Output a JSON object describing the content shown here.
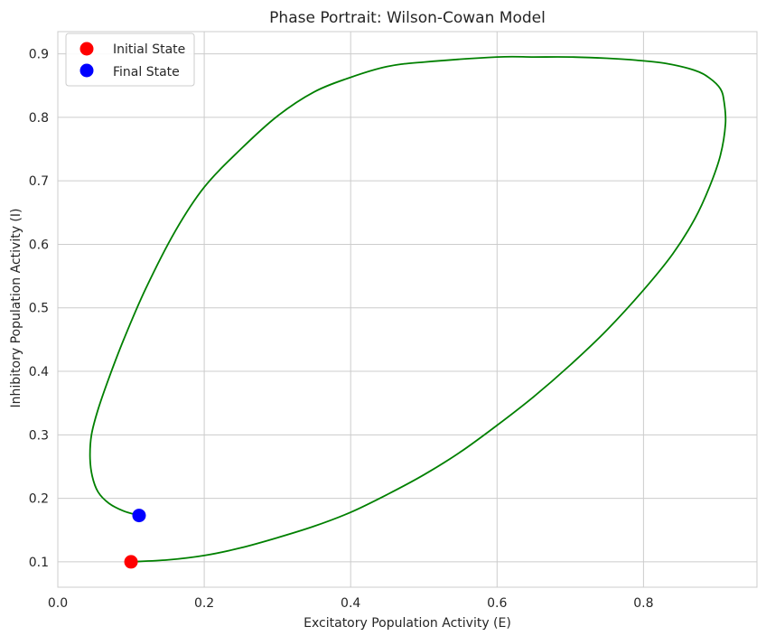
{
  "chart_data": {
    "type": "line",
    "title": "Phase Portrait: Wilson-Cowan Model",
    "xlabel": "Excitatory Population Activity (E)",
    "ylabel": "Inhibitory Population Activity (I)",
    "xlim": [
      0.0,
      0.955
    ],
    "ylim": [
      0.06,
      0.935
    ],
    "xticks": [
      0.0,
      0.2,
      0.4,
      0.6,
      0.8
    ],
    "xtick_labels": [
      "0.0",
      "0.2",
      "0.4",
      "0.6",
      "0.8"
    ],
    "yticks": [
      0.1,
      0.2,
      0.3,
      0.4,
      0.5,
      0.6,
      0.7,
      0.8,
      0.9
    ],
    "ytick_labels": [
      "0.1",
      "0.2",
      "0.3",
      "0.4",
      "0.5",
      "0.6",
      "0.7",
      "0.8",
      "0.9"
    ],
    "grid": true,
    "legend_position": "top-left",
    "trajectory": {
      "color": "#008000",
      "x": [
        0.1,
        0.15,
        0.2,
        0.25,
        0.3,
        0.35,
        0.4,
        0.45,
        0.5,
        0.55,
        0.6,
        0.65,
        0.7,
        0.75,
        0.8,
        0.84,
        0.87,
        0.89,
        0.905,
        0.912,
        0.91,
        0.905,
        0.89,
        0.87,
        0.83,
        0.79,
        0.75,
        0.7,
        0.65,
        0.6,
        0.5,
        0.45,
        0.4,
        0.35,
        0.3,
        0.25,
        0.2,
        0.16,
        0.12,
        0.09,
        0.07,
        0.055,
        0.046,
        0.044,
        0.047,
        0.055,
        0.07,
        0.09,
        0.111
      ],
      "y": [
        0.1,
        0.103,
        0.11,
        0.122,
        0.138,
        0.156,
        0.178,
        0.206,
        0.237,
        0.273,
        0.315,
        0.36,
        0.41,
        0.465,
        0.528,
        0.585,
        0.64,
        0.69,
        0.74,
        0.79,
        0.825,
        0.845,
        0.862,
        0.874,
        0.885,
        0.89,
        0.893,
        0.895,
        0.895,
        0.895,
        0.887,
        0.88,
        0.863,
        0.84,
        0.802,
        0.75,
        0.69,
        0.62,
        0.53,
        0.45,
        0.39,
        0.34,
        0.3,
        0.265,
        0.235,
        0.21,
        0.192,
        0.18,
        0.173
      ]
    },
    "markers": [
      {
        "name": "Initial State",
        "x": 0.1,
        "y": 0.1,
        "color": "#ff0000"
      },
      {
        "name": "Final State",
        "x": 0.111,
        "y": 0.173,
        "color": "#0000ff"
      }
    ]
  }
}
